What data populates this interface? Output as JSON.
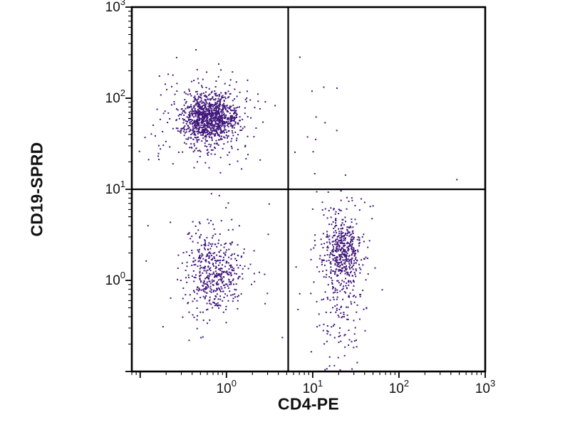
{
  "figure": {
    "background": "#ffffff",
    "title": ""
  },
  "chart_data": {
    "type": "scatter",
    "title": "",
    "xlabel": "CD4-PE",
    "ylabel": "CD19-SPRD",
    "x_scale": "log",
    "y_scale": "log",
    "xlim": [
      0.08,
      1000
    ],
    "ylim": [
      0.1,
      1000
    ],
    "grid": false,
    "legend": false,
    "frame": true,
    "tick_base": "10",
    "x_ticks": [
      {
        "v": 1,
        "exp": "0"
      },
      {
        "v": 10,
        "exp": "1"
      },
      {
        "v": 100,
        "exp": "2"
      },
      {
        "v": 1000,
        "exp": "3"
      }
    ],
    "y_ticks": [
      {
        "v": 1,
        "exp": "0"
      },
      {
        "v": 10,
        "exp": "1"
      },
      {
        "v": 100,
        "exp": "2"
      },
      {
        "v": 1000,
        "exp": "3"
      }
    ],
    "quadrant_gate": {
      "x": 5.2,
      "y": 10
    },
    "dot_color": "#41187b",
    "dot_size": 2,
    "seed": 42,
    "clusters": [
      {
        "name": "cd19-pos-b-cells-core",
        "cx": 0.62,
        "cy": 62,
        "sx": 0.16,
        "sy": 0.13,
        "n": 900
      },
      {
        "name": "cd19-pos-b-cells-halo",
        "cx": 0.62,
        "cy": 60,
        "sx": 0.3,
        "sy": 0.26,
        "n": 260
      },
      {
        "name": "double-negative-core",
        "cx": 0.72,
        "cy": 1.25,
        "sx": 0.16,
        "sy": 0.2,
        "n": 380
      },
      {
        "name": "double-negative-halo",
        "cx": 0.72,
        "cy": 1.25,
        "sx": 0.3,
        "sy": 0.38,
        "n": 120
      },
      {
        "name": "cd4-pos-t-cells-core",
        "cx": 22,
        "cy": 2.0,
        "sx": 0.11,
        "sy": 0.22,
        "n": 420
      },
      {
        "name": "cd4-pos-t-cells-halo",
        "cx": 21,
        "cy": 1.5,
        "sx": 0.18,
        "sy": 0.45,
        "n": 150
      },
      {
        "name": "cd4-pos-t-cells-low-tail",
        "cx": 20,
        "cy": 0.35,
        "sx": 0.12,
        "sy": 0.3,
        "n": 60
      },
      {
        "name": "upper-right-sparse",
        "cx": 10,
        "cy": 45,
        "sx": 0.16,
        "sy": 0.38,
        "n": 13
      }
    ],
    "outliers": [
      [
        460,
        13
      ]
    ]
  }
}
